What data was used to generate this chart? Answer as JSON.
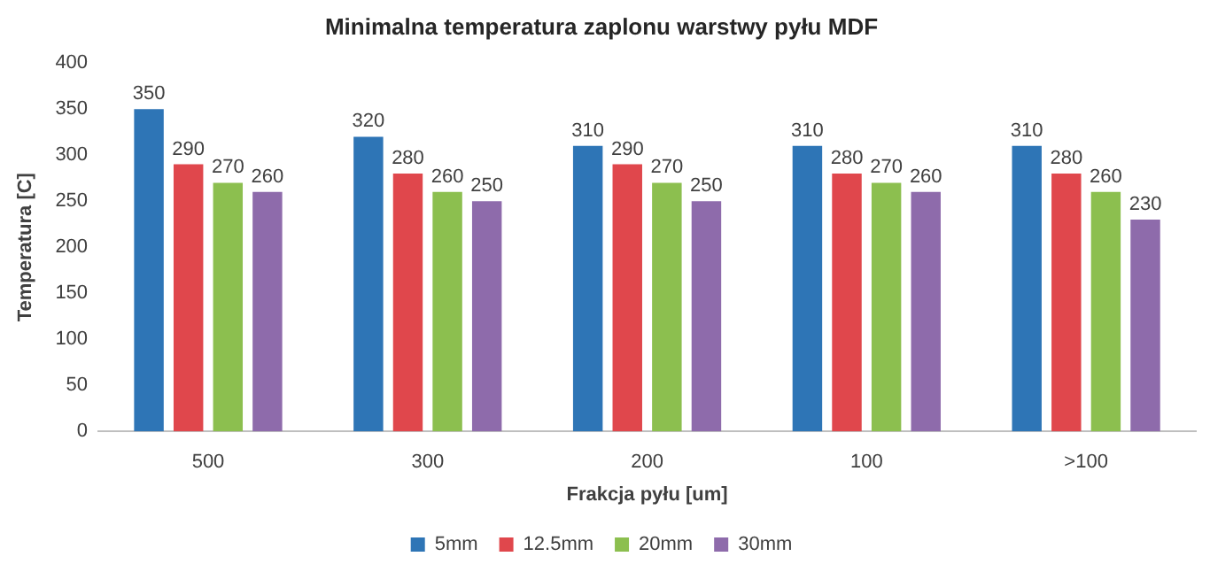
{
  "chart_data": {
    "type": "bar",
    "title": "Minimalna temperatura zaplonu warstwy pyłu MDF",
    "xlabel": "Frakcja pyłu [um]",
    "ylabel": "Temperatura [C]",
    "categories": [
      "500",
      "300",
      "200",
      "100",
      ">100"
    ],
    "series": [
      {
        "name": "5mm",
        "color": "#2e75b6",
        "values": [
          350,
          320,
          310,
          310,
          310
        ]
      },
      {
        "name": "12.5mm",
        "color": "#e0474c",
        "values": [
          290,
          280,
          290,
          280,
          280
        ]
      },
      {
        "name": "20mm",
        "color": "#8cbf4f",
        "values": [
          270,
          260,
          270,
          270,
          260
        ]
      },
      {
        "name": "30mm",
        "color": "#8e6bab",
        "values": [
          260,
          250,
          250,
          260,
          230
        ]
      }
    ],
    "ylim": [
      0,
      400
    ],
    "yticks": [
      0,
      50,
      100,
      150,
      200,
      250,
      300,
      350,
      400
    ],
    "grid": false,
    "legend": "bottom",
    "data_labels": true
  }
}
